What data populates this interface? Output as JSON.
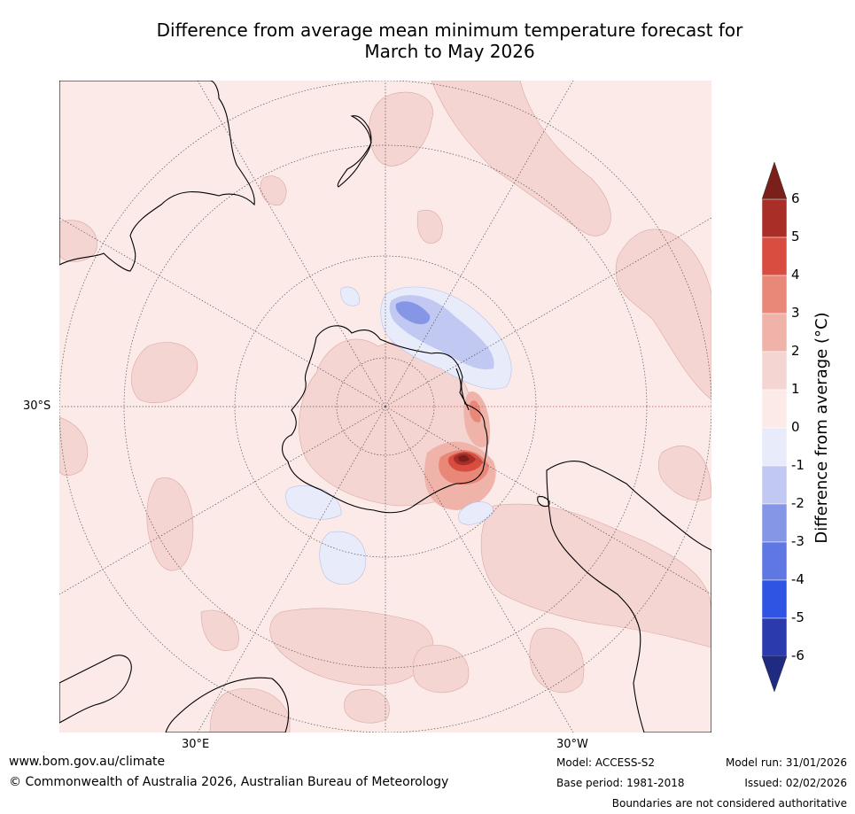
{
  "title": {
    "line1": "Difference from average mean minimum temperature forecast for",
    "line2": "March to May 2026"
  },
  "map": {
    "projection": "south-polar-stereographic",
    "lat_labels": [
      "30°S"
    ],
    "lon_labels": [
      "30°E",
      "30°W"
    ]
  },
  "colorbar": {
    "label": "Difference from average (°C)",
    "ticks": [
      "6",
      "5",
      "4",
      "3",
      "2",
      "1",
      "0",
      "-1",
      "-2",
      "-3",
      "-4",
      "-5",
      "-6"
    ],
    "colors": {
      "ext_high": "#7a1f1a",
      "c5_6": "#a82e27",
      "c4_5": "#d94c40",
      "c3_4": "#e88878",
      "c2_3": "#efb3aa",
      "c1_2": "#f5d5d2",
      "c0_1": "#fbeae8",
      "cm1_0": "#e8ecfa",
      "cm2_m1": "#c1c8f1",
      "cm3_m2": "#8596e6",
      "cm4_m3": "#5f77e2",
      "cm5_m4": "#2f53e2",
      "cm6_m5": "#2b3aad",
      "ext_low": "#1f2b80"
    }
  },
  "footer": {
    "url": "www.bom.gov.au/climate",
    "copyright": "© Commonwealth of Australia 2026, Australian Bureau of Meteorology",
    "model": "Model: ACCESS-S2",
    "base_period": "Base period: 1981-2018",
    "model_run": "Model run: 31/01/2026",
    "issued": "Issued: 02/02/2026",
    "disclaimer": "Boundaries are not considered authoritative"
  }
}
